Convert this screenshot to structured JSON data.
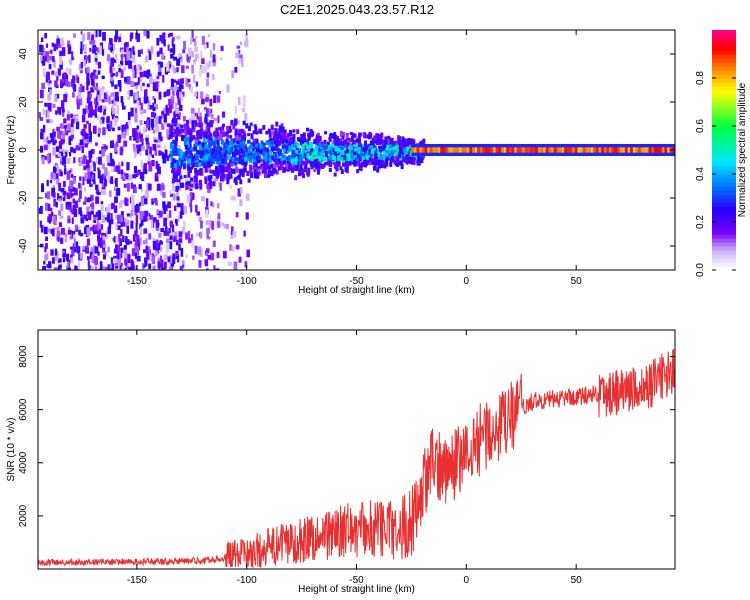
{
  "title": "C2E1.2025.043.23.57.R12",
  "chart_data": [
    {
      "type": "heatmap",
      "xlabel": "Height of straight line (km)",
      "ylabel": "Frequency (Hz)",
      "xlim": [
        -195,
        95
      ],
      "ylim": [
        -50,
        50
      ],
      "xticks": [
        -150,
        -100,
        -50,
        0,
        50
      ],
      "yticks": [
        -40,
        -20,
        0,
        20,
        40
      ],
      "grid": false,
      "colorbar": {
        "label": "Normalized spectral amplitude",
        "range": [
          0,
          1
        ],
        "ticks": [
          "0.0",
          "0.2",
          "0.4",
          "0.6",
          "0.8"
        ],
        "colors": [
          "#ffffff",
          "#7a00ff",
          "#0000ff",
          "#00e5ff",
          "#00ff40",
          "#ffff00",
          "#ff8000",
          "#ff0000",
          "#ff0080"
        ]
      }
    },
    {
      "type": "line",
      "xlabel": "Height of straight line (km)",
      "ylabel": "SNR (10 * v/v)",
      "xlim": [
        -195,
        95
      ],
      "ylim": [
        0,
        9000
      ],
      "xticks": [
        -150,
        -100,
        -50,
        0,
        50
      ],
      "yticks": [
        2000,
        4000,
        6000,
        8000
      ],
      "grid": false,
      "series": [
        {
          "color": "#e83030",
          "x": [
            -195,
            -180,
            -160,
            -140,
            -120,
            -100,
            -90,
            -80,
            -70,
            -60,
            -50,
            -40,
            -30,
            -25,
            -20,
            -15,
            -10,
            -5,
            0,
            5,
            10,
            15,
            20,
            25,
            30,
            40,
            50,
            60,
            70,
            75,
            80,
            85,
            90,
            95
          ],
          "y": [
            250,
            250,
            260,
            280,
            320,
            500,
            800,
            1000,
            1200,
            1350,
            1500,
            1500,
            1500,
            1800,
            3000,
            4000,
            3800,
            4000,
            4200,
            4800,
            5200,
            5200,
            5700,
            6000,
            6300,
            6400,
            6500,
            6600,
            6700,
            6800,
            6700,
            7000,
            7300,
            7500
          ]
        }
      ]
    }
  ]
}
